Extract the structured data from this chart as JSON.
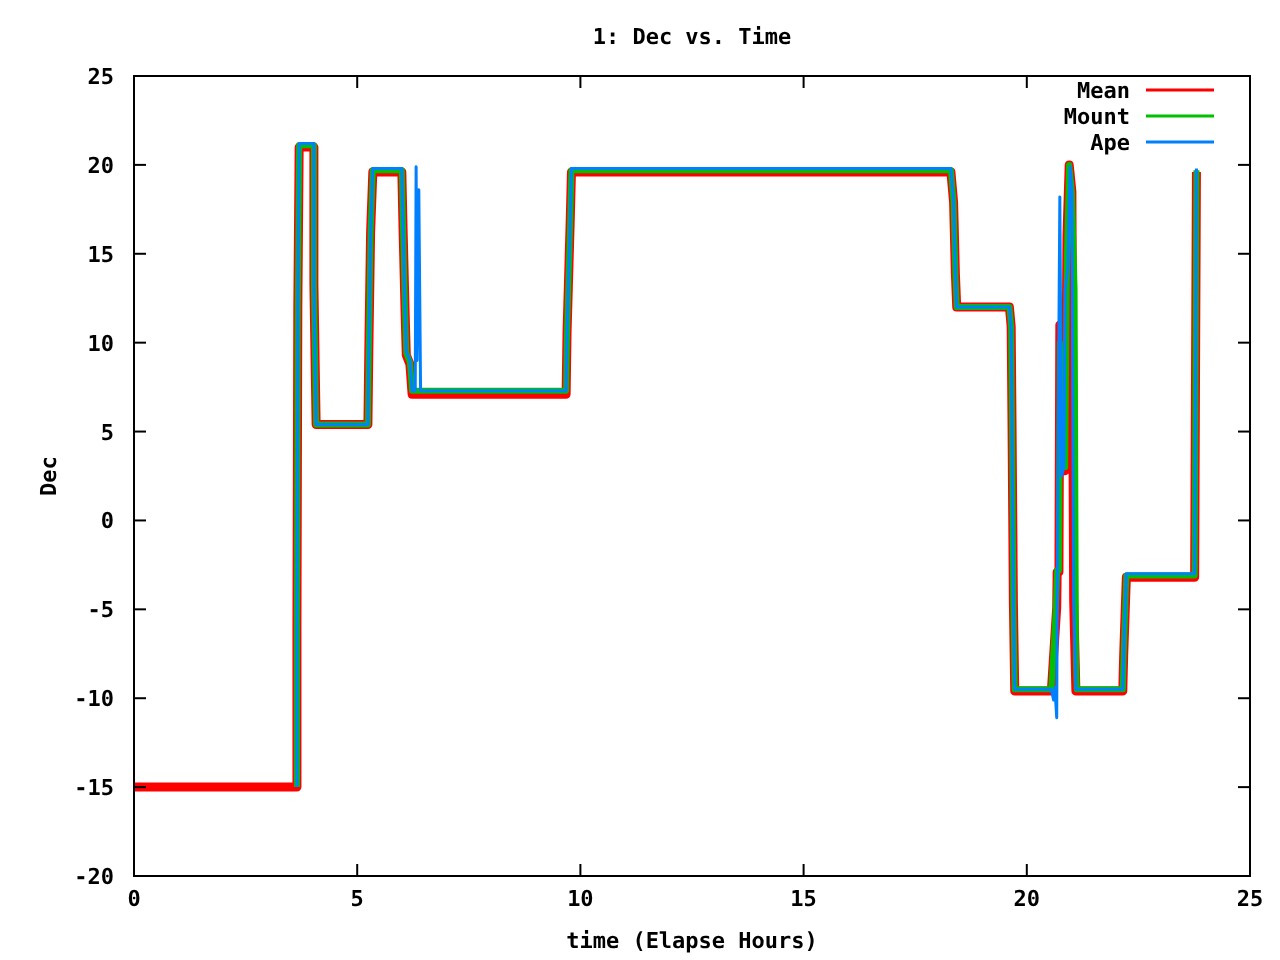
{
  "chart_data": {
    "type": "line",
    "title": "1: Dec vs. Time",
    "xlabel": "time (Elapse Hours)",
    "ylabel": "Dec",
    "xlim": [
      0,
      25
    ],
    "ylim": [
      -20,
      25
    ],
    "xticks": [
      0,
      5,
      10,
      15,
      20,
      25
    ],
    "yticks": [
      -20,
      -15,
      -10,
      -5,
      0,
      5,
      10,
      15,
      20,
      25
    ],
    "grid": false,
    "legend": "top right",
    "marker": "none",
    "line_style": "solid",
    "series": [
      {
        "name": "Mean",
        "color": "#ff0000",
        "x": [
          0,
          3.65,
          3.65,
          3.67,
          3.7,
          4.03,
          4.03,
          4.08,
          5.24,
          5.26,
          5.3,
          5.35,
          6.0,
          6.02,
          6.07,
          6.1,
          6.18,
          6.23,
          6.42,
          9.68,
          9.7,
          9.77,
          9.8,
          18.3,
          18.36,
          18.4,
          18.43,
          19.61,
          19.65,
          19.67,
          19.7,
          19.73,
          20.55,
          20.67,
          20.68,
          20.72,
          20.74,
          20.8,
          20.86,
          20.9,
          20.95,
          21.01,
          21.05,
          21.1,
          22.15,
          22.17,
          22.23,
          23.76,
          23.78,
          23.8
        ],
        "values": [
          -15,
          -15,
          -6,
          12,
          21.0,
          21.0,
          13.3,
          5.4,
          5.4,
          9.5,
          16.2,
          19.6,
          19.6,
          17.2,
          12,
          9.3,
          8.8,
          7.1,
          7.1,
          7.1,
          10.5,
          16.7,
          19.6,
          19.6,
          17.9,
          13.9,
          12.0,
          12.0,
          10.9,
          5.1,
          -4.7,
          -9.6,
          -9.6,
          -4.9,
          -2.9,
          -2.9,
          11,
          2.8,
          2.8,
          16,
          20,
          18.5,
          -4.5,
          -9.6,
          -9.6,
          -7.6,
          -3.2,
          -3.2,
          8.4,
          19.6
        ]
      },
      {
        "name": "Mount",
        "color": "#00c000",
        "x": [
          3.65,
          3.65,
          3.67,
          3.7,
          4.03,
          4.03,
          4.08,
          5.24,
          5.26,
          5.3,
          5.35,
          6.0,
          6.02,
          6.07,
          6.1,
          6.18,
          6.23,
          6.42,
          9.68,
          9.7,
          9.77,
          9.8,
          18.3,
          18.36,
          18.4,
          18.43,
          19.61,
          19.65,
          19.67,
          19.7,
          19.73,
          20.55,
          20.65,
          20.68,
          20.72,
          20.74,
          20.8,
          20.86,
          20.9,
          20.95,
          21.01,
          21.07,
          21.1,
          21.12,
          22.15,
          22.17,
          22.23,
          23.76,
          23.78,
          23.8
        ],
        "values": [
          -15,
          -6,
          12,
          21.1,
          21.1,
          13.3,
          5.4,
          5.4,
          9.5,
          16.2,
          19.7,
          19.7,
          17.2,
          12,
          9.4,
          8.9,
          7.3,
          7.3,
          7.3,
          10.5,
          16.7,
          19.7,
          19.7,
          17.9,
          13.9,
          12.0,
          12.0,
          10.9,
          5.1,
          -4.7,
          -9.5,
          -9.5,
          -5,
          -2.8,
          -2.8,
          10,
          3,
          3,
          15,
          20,
          18.5,
          13,
          -7.8,
          -9.5,
          -9.5,
          -7.6,
          -3.1,
          -3.1,
          8.4,
          19.7
        ]
      },
      {
        "name": "Ape",
        "color": "#0080ff",
        "x": [
          3.65,
          3.65,
          3.67,
          3.7,
          4.03,
          4.03,
          4.08,
          5.24,
          5.26,
          5.3,
          5.35,
          6.0,
          6.02,
          6.07,
          6.1,
          6.18,
          6.23,
          6.3,
          6.32,
          6.34,
          6.38,
          6.42,
          9.68,
          9.7,
          9.77,
          9.8,
          18.3,
          18.36,
          18.4,
          18.43,
          19.61,
          19.65,
          19.67,
          19.7,
          19.73,
          20.55,
          20.6,
          20.63,
          20.67,
          20.68,
          20.72,
          20.74,
          20.78,
          20.83,
          20.86,
          20.92,
          20.97,
          21.01,
          21.05,
          21.1,
          22.15,
          22.17,
          22.23,
          23.76,
          23.78,
          23.8
        ],
        "values": [
          -15,
          -6,
          12,
          21.2,
          21.2,
          13.3,
          5.4,
          5.4,
          9.5,
          16.2,
          19.8,
          19.8,
          17.2,
          12,
          9.5,
          9.0,
          7.3,
          7.3,
          19.9,
          9,
          18.6,
          7.3,
          7.3,
          10.5,
          16.7,
          19.8,
          19.8,
          17.9,
          13.9,
          12.0,
          12.0,
          10.9,
          5.1,
          -4.7,
          -9.5,
          -9.5,
          -10.1,
          -9.4,
          -11.1,
          -5,
          10.9,
          18.2,
          2.5,
          3,
          13,
          14.2,
          19.9,
          18.5,
          -4.5,
          -9.5,
          -9.5,
          -7.6,
          -3.0,
          -3.0,
          8.4,
          19.8
        ]
      }
    ]
  }
}
